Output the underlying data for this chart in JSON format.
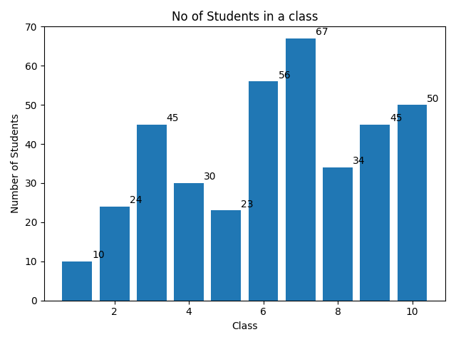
{
  "classes": [
    1,
    2,
    3,
    4,
    5,
    6,
    7,
    8,
    9,
    10
  ],
  "values": [
    10,
    24,
    45,
    30,
    23,
    56,
    67,
    34,
    45,
    50
  ],
  "bar_color": "#2077b4",
  "title": "No of Students in a class",
  "xlabel": "Class",
  "ylabel": "Number of Students",
  "ylim": [
    0,
    70
  ],
  "title_fontsize": 12,
  "label_fontsize": 10,
  "tick_fontsize": 10,
  "figsize": [
    6.4,
    4.8
  ],
  "dpi": 100
}
